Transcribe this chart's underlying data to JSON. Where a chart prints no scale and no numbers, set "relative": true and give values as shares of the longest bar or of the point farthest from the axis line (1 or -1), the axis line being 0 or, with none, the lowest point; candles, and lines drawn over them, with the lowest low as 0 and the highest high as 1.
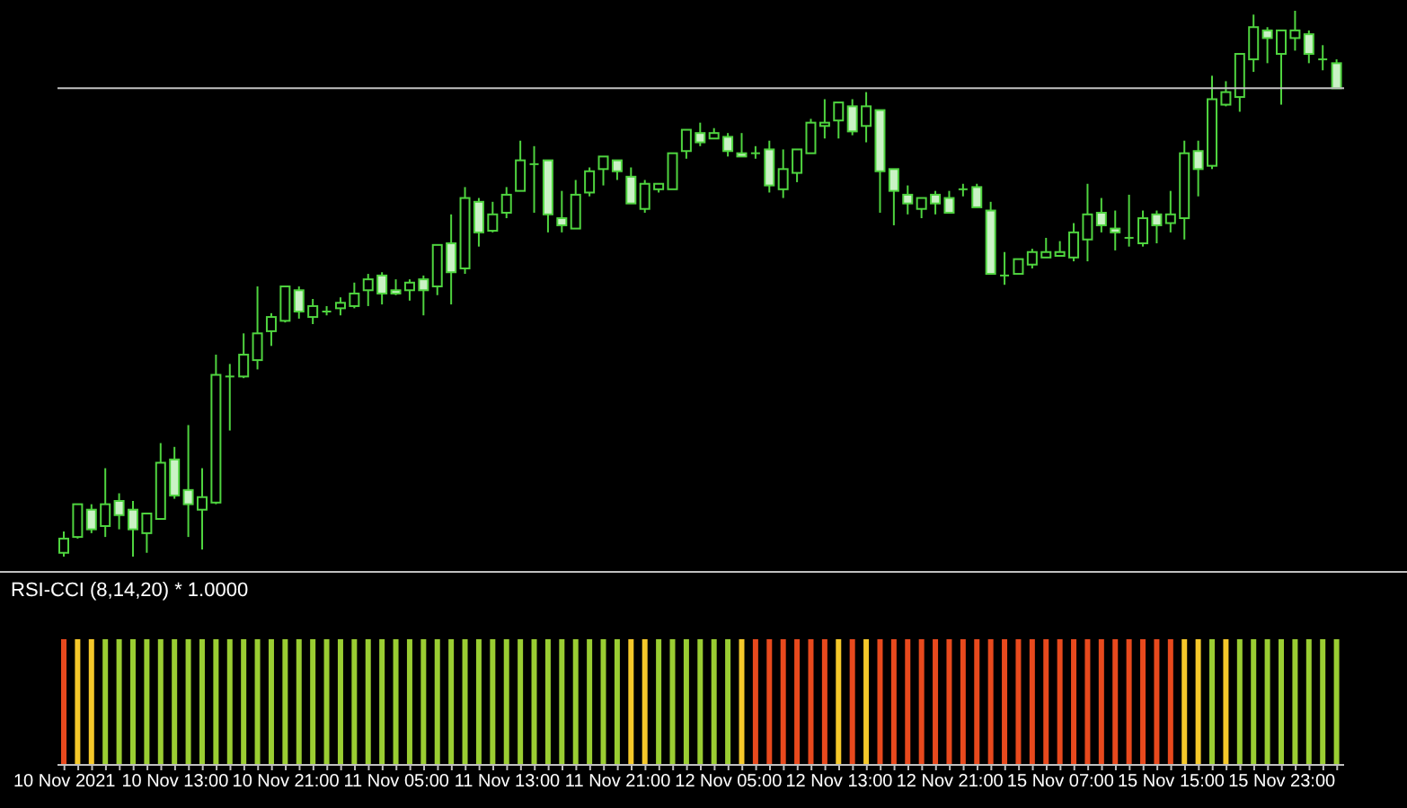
{
  "chart_data": [
    {
      "type": "candlestick",
      "relative": true,
      "color": "#4fd43f",
      "tick_labels": false,
      "categories": [
        null,
        null,
        null,
        null,
        null,
        null,
        null,
        null,
        null,
        null,
        null,
        null,
        null,
        null,
        null,
        null,
        null,
        null,
        null,
        null,
        null,
        null,
        null,
        null,
        null,
        null,
        null,
        null,
        null,
        null,
        null,
        null,
        null,
        null,
        null,
        null,
        null,
        null,
        null,
        null,
        null,
        null,
        null,
        null,
        null,
        null,
        null,
        null,
        null,
        null,
        null,
        null,
        null,
        null,
        null,
        null,
        null,
        null,
        null,
        null,
        null,
        null,
        null,
        null,
        null,
        null,
        null,
        null,
        null,
        null,
        null,
        null,
        null,
        null,
        null,
        null,
        null,
        null,
        null,
        null,
        null,
        null,
        null,
        null,
        null,
        null,
        null,
        null,
        null,
        null,
        null,
        null,
        null
      ],
      "ohlc": [
        [
          0.007,
          0.046,
          0,
          0.033
        ],
        [
          0.036,
          0.096,
          0.033,
          0.096
        ],
        [
          0.086,
          0.096,
          0.043,
          0.05
        ],
        [
          0.056,
          0.162,
          0.036,
          0.096
        ],
        [
          0.102,
          0.116,
          0.05,
          0.076
        ],
        [
          0.086,
          0.102,
          0,
          0.05
        ],
        [
          0.043,
          0.079,
          0.007,
          0.079
        ],
        [
          0.069,
          0.208,
          0.069,
          0.172
        ],
        [
          0.178,
          0.201,
          0.106,
          0.112
        ],
        [
          0.122,
          0.241,
          0.036,
          0.096
        ],
        [
          0.086,
          0.162,
          0.013,
          0.109
        ],
        [
          0.099,
          0.37,
          0.096,
          0.333
        ],
        [
          0.327,
          0.353,
          0.231,
          0.33
        ],
        [
          0.33,
          0.409,
          0.327,
          0.37
        ],
        [
          0.36,
          0.495,
          0.343,
          0.409
        ],
        [
          0.413,
          0.446,
          0.386,
          0.439
        ],
        [
          0.432,
          0.495,
          0.429,
          0.495
        ],
        [
          0.488,
          0.495,
          0.436,
          0.449
        ],
        [
          0.439,
          0.472,
          0.426,
          0.459
        ],
        [
          0.449,
          0.459,
          0.442,
          0.449
        ],
        [
          0.455,
          0.475,
          0.442,
          0.465
        ],
        [
          0.459,
          0.502,
          0.455,
          0.482
        ],
        [
          0.488,
          0.518,
          0.459,
          0.508
        ],
        [
          0.515,
          0.521,
          0.462,
          0.482
        ],
        [
          0.488,
          0.508,
          0.479,
          0.482
        ],
        [
          0.488,
          0.508,
          0.469,
          0.502
        ],
        [
          0.508,
          0.515,
          0.442,
          0.488
        ],
        [
          0.495,
          0.571,
          0.479,
          0.571
        ],
        [
          0.574,
          0.627,
          0.462,
          0.521
        ],
        [
          0.528,
          0.677,
          0.518,
          0.657
        ],
        [
          0.65,
          0.657,
          0.568,
          0.594
        ],
        [
          0.597,
          0.65,
          0.594,
          0.627
        ],
        [
          0.63,
          0.677,
          0.62,
          0.663
        ],
        [
          0.67,
          0.762,
          0.67,
          0.726
        ],
        [
          0.719,
          0.752,
          0.63,
          0.719
        ],
        [
          0.726,
          0.726,
          0.594,
          0.627
        ],
        [
          0.62,
          0.67,
          0.594,
          0.607
        ],
        [
          0.601,
          0.69,
          0.601,
          0.663
        ],
        [
          0.667,
          0.713,
          0.66,
          0.706
        ],
        [
          0.71,
          0.733,
          0.68,
          0.733
        ],
        [
          0.726,
          0.726,
          0.69,
          0.706
        ],
        [
          0.696,
          0.713,
          0.647,
          0.647
        ],
        [
          0.637,
          0.69,
          0.63,
          0.683
        ],
        [
          0.673,
          0.683,
          0.667,
          0.683
        ],
        [
          0.673,
          0.739,
          0.673,
          0.739
        ],
        [
          0.743,
          0.782,
          0.729,
          0.782
        ],
        [
          0.776,
          0.795,
          0.752,
          0.759
        ],
        [
          0.766,
          0.785,
          0.766,
          0.776
        ],
        [
          0.769,
          0.776,
          0.733,
          0.743
        ],
        [
          0.739,
          0.776,
          0.733,
          0.733
        ],
        [
          0.739,
          0.752,
          0.729,
          0.739
        ],
        [
          0.746,
          0.762,
          0.667,
          0.68
        ],
        [
          0.673,
          0.746,
          0.657,
          0.71
        ],
        [
          0.703,
          0.746,
          0.686,
          0.746
        ],
        [
          0.739,
          0.802,
          0.739,
          0.795
        ],
        [
          0.789,
          0.838,
          0.766,
          0.795
        ],
        [
          0.799,
          0.832,
          0.766,
          0.832
        ],
        [
          0.825,
          0.838,
          0.772,
          0.779
        ],
        [
          0.789,
          0.851,
          0.759,
          0.825
        ],
        [
          0.818,
          0.818,
          0.63,
          0.706
        ],
        [
          0.71,
          0.71,
          0.607,
          0.67
        ],
        [
          0.663,
          0.68,
          0.627,
          0.647
        ],
        [
          0.637,
          0.657,
          0.62,
          0.657
        ],
        [
          0.663,
          0.67,
          0.627,
          0.647
        ],
        [
          0.657,
          0.67,
          0.63,
          0.63
        ],
        [
          0.673,
          0.683,
          0.66,
          0.673
        ],
        [
          0.677,
          0.683,
          0.64,
          0.64
        ],
        [
          0.634,
          0.65,
          0.518,
          0.518
        ],
        [
          0.515,
          0.558,
          0.498,
          0.515
        ],
        [
          0.518,
          0.545,
          0.518,
          0.545
        ],
        [
          0.535,
          0.564,
          0.528,
          0.558
        ],
        [
          0.548,
          0.584,
          0.548,
          0.558
        ],
        [
          0.551,
          0.578,
          0.551,
          0.558
        ],
        [
          0.548,
          0.611,
          0.541,
          0.594
        ],
        [
          0.581,
          0.683,
          0.541,
          0.627
        ],
        [
          0.63,
          0.657,
          0.594,
          0.607
        ],
        [
          0.601,
          0.634,
          0.561,
          0.594
        ],
        [
          0.584,
          0.663,
          0.568,
          0.584
        ],
        [
          0.574,
          0.634,
          0.568,
          0.62
        ],
        [
          0.627,
          0.634,
          0.574,
          0.607
        ],
        [
          0.611,
          0.67,
          0.594,
          0.627
        ],
        [
          0.62,
          0.762,
          0.581,
          0.739
        ],
        [
          0.743,
          0.762,
          0.66,
          0.71
        ],
        [
          0.716,
          0.881,
          0.71,
          0.838
        ],
        [
          0.828,
          0.871,
          0.825,
          0.851
        ],
        [
          0.842,
          0.921,
          0.815,
          0.921
        ],
        [
          0.911,
          0.993,
          0.888,
          0.97
        ],
        [
          0.964,
          0.97,
          0.904,
          0.95
        ],
        [
          0.921,
          0.964,
          0.828,
          0.964
        ],
        [
          0.95,
          1,
          0.927,
          0.964
        ],
        [
          0.957,
          0.964,
          0.904,
          0.921
        ],
        [
          0.911,
          0.937,
          0.891,
          0.911
        ],
        [
          0.904,
          0.911,
          0.858,
          0.858
        ]
      ],
      "ref_lines": [
        {
          "axis": "y",
          "value": 0.858,
          "color": "#c0c0c0"
        }
      ]
    },
    {
      "type": "bar",
      "relative": true,
      "title": "RSI-CCI (8,14,20) * 1.0000",
      "categories": [
        "10 Nov 2021",
        null,
        null,
        null,
        null,
        null,
        null,
        null,
        "10 Nov 13:00",
        null,
        null,
        null,
        null,
        null,
        null,
        null,
        "10 Nov 21:00",
        null,
        null,
        null,
        null,
        null,
        null,
        null,
        "11 Nov 05:00",
        null,
        null,
        null,
        null,
        null,
        null,
        null,
        "11 Nov 13:00",
        null,
        null,
        null,
        null,
        null,
        null,
        null,
        "11 Nov 21:00",
        null,
        null,
        null,
        null,
        null,
        null,
        null,
        "12 Nov 05:00",
        null,
        null,
        null,
        null,
        null,
        null,
        null,
        "12 Nov 13:00",
        null,
        null,
        null,
        null,
        null,
        null,
        null,
        "12 Nov 21:00",
        null,
        null,
        null,
        null,
        null,
        null,
        null,
        "15 Nov 07:00",
        null,
        null,
        null,
        null,
        null,
        null,
        null,
        "15 Nov 15:00",
        null,
        null,
        null,
        null,
        null,
        null,
        null,
        "15 Nov 23:00",
        null,
        null,
        null,
        null
      ],
      "values": [
        1,
        1,
        1,
        1,
        1,
        1,
        1,
        1,
        1,
        1,
        1,
        1,
        1,
        1,
        1,
        1,
        1,
        1,
        1,
        1,
        1,
        1,
        1,
        1,
        1,
        1,
        1,
        1,
        1,
        1,
        1,
        1,
        1,
        1,
        1,
        1,
        1,
        1,
        1,
        1,
        1,
        1,
        1,
        1,
        1,
        1,
        1,
        1,
        1,
        1,
        1,
        1,
        1,
        1,
        1,
        1,
        1,
        1,
        1,
        1,
        1,
        1,
        1,
        1,
        1,
        1,
        1,
        1,
        1,
        1,
        1,
        1,
        1,
        1,
        1,
        1,
        1,
        1,
        1,
        1,
        1,
        1,
        1,
        1,
        1,
        1,
        1,
        1,
        1,
        1,
        1,
        1,
        1
      ],
      "colors": [
        "#e8491d",
        "#f5c82a",
        "#f5c82a",
        "#9acd32",
        "#9acd32",
        "#9acd32",
        "#9acd32",
        "#9acd32",
        "#9acd32",
        "#9acd32",
        "#9acd32",
        "#9acd32",
        "#9acd32",
        "#9acd32",
        "#9acd32",
        "#9acd32",
        "#9acd32",
        "#9acd32",
        "#9acd32",
        "#9acd32",
        "#9acd32",
        "#9acd32",
        "#9acd32",
        "#9acd32",
        "#9acd32",
        "#9acd32",
        "#9acd32",
        "#9acd32",
        "#9acd32",
        "#9acd32",
        "#9acd32",
        "#9acd32",
        "#9acd32",
        "#9acd32",
        "#9acd32",
        "#9acd32",
        "#9acd32",
        "#9acd32",
        "#9acd32",
        "#9acd32",
        "#9acd32",
        "#f5c82a",
        "#f5c82a",
        "#9acd32",
        "#9acd32",
        "#9acd32",
        "#9acd32",
        "#9acd32",
        "#9acd32",
        "#f5c82a",
        "#e8491d",
        "#e8491d",
        "#e8491d",
        "#e8491d",
        "#e8491d",
        "#e8491d",
        "#f5c82a",
        "#e8491d",
        "#f5c82a",
        "#e8491d",
        "#e8491d",
        "#e8491d",
        "#e8491d",
        "#e8491d",
        "#e8491d",
        "#e8491d",
        "#e8491d",
        "#e8491d",
        "#e8491d",
        "#e8491d",
        "#e8491d",
        "#e8491d",
        "#e8491d",
        "#e8491d",
        "#e8491d",
        "#e8491d",
        "#e8491d",
        "#e8491d",
        "#e8491d",
        "#e8491d",
        "#e8491d",
        "#f5c82a",
        "#f5c82a",
        "#9acd32",
        "#f5c82a",
        "#9acd32",
        "#9acd32",
        "#9acd32",
        "#9acd32",
        "#9acd32",
        "#9acd32",
        "#9acd32",
        "#9acd32"
      ]
    }
  ]
}
